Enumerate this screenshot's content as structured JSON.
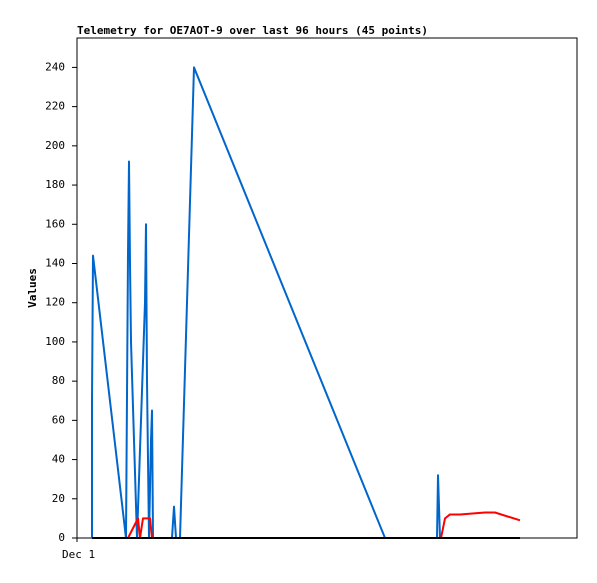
{
  "chart_data": {
    "type": "line",
    "title": "Telemetry for OE7AOT-9 over last 96 hours (45 points)",
    "y_label": "Values",
    "xlim": [
      0,
      100
    ],
    "xticks": [
      {
        "value": 0,
        "label": "Dec 1"
      }
    ],
    "ylim": [
      0,
      255
    ],
    "yticks": [
      0,
      20,
      40,
      60,
      80,
      100,
      120,
      140,
      160,
      180,
      200,
      220,
      240
    ],
    "grid": false,
    "series": [
      {
        "color": "#0066cc",
        "x": [
          3,
          3,
          3.2,
          9.8,
          10.2,
          10.4,
          10.6,
          10.8,
          12,
          13.6,
          13.8,
          14,
          14.4,
          14.8,
          15,
          15.2,
          19,
          19.4,
          19.8,
          20.6,
          23.4,
          61.6,
          72,
          72.2,
          72.6,
          88.6
        ],
        "values": [
          0,
          70,
          144,
          0,
          145,
          192,
          140,
          100,
          0,
          120,
          160,
          80,
          0,
          50,
          65,
          0,
          0,
          16,
          0,
          0,
          240,
          0,
          0,
          32,
          0,
          0
        ]
      },
      {
        "color": "#ff0000",
        "x": [
          10.2,
          12.2,
          12.6,
          13.2,
          14.6,
          15,
          72.8,
          73.6,
          74.6,
          76.6,
          81.6,
          83.6,
          88.6
        ],
        "values": [
          0,
          10,
          0,
          10,
          10,
          0,
          0,
          10,
          12,
          12,
          13,
          13,
          9
        ]
      },
      {
        "color": "#000000",
        "x": [
          3,
          88.6
        ],
        "values": [
          0,
          0
        ]
      }
    ]
  }
}
